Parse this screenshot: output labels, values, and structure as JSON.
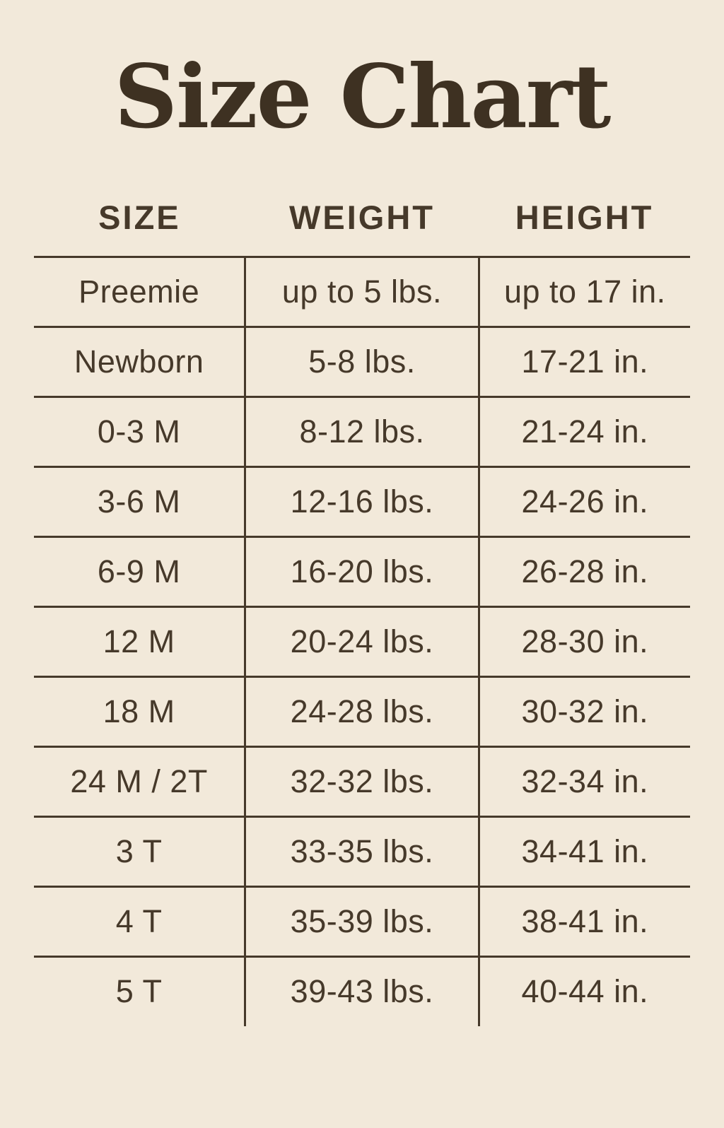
{
  "title": "Size Chart",
  "colors": {
    "background": "#f2e9da",
    "ink": "#46392a",
    "title_ink": "#3e3122",
    "line": "#46392a"
  },
  "chart_data": {
    "type": "table",
    "title": "Size Chart",
    "columns": [
      "SIZE",
      "WEIGHT",
      "HEIGHT"
    ],
    "rows": [
      [
        "Preemie",
        "up to 5 lbs.",
        "up to 17 in."
      ],
      [
        "Newborn",
        "5-8 lbs.",
        "17-21 in."
      ],
      [
        "0-3 M",
        "8-12 lbs.",
        "21-24 in."
      ],
      [
        "3-6 M",
        "12-16 lbs.",
        "24-26 in."
      ],
      [
        "6-9 M",
        "16-20 lbs.",
        "26-28 in."
      ],
      [
        "12 M",
        "20-24 lbs.",
        "28-30 in."
      ],
      [
        "18 M",
        "24-28 lbs.",
        "30-32 in."
      ],
      [
        "24 M / 2T",
        "32-32 lbs.",
        "32-34 in."
      ],
      [
        "3 T",
        "33-35 lbs.",
        "34-41 in."
      ],
      [
        "4 T",
        "35-39 lbs.",
        "38-41 in."
      ],
      [
        "5 T",
        "39-43 lbs.",
        "40-44 in."
      ]
    ]
  }
}
